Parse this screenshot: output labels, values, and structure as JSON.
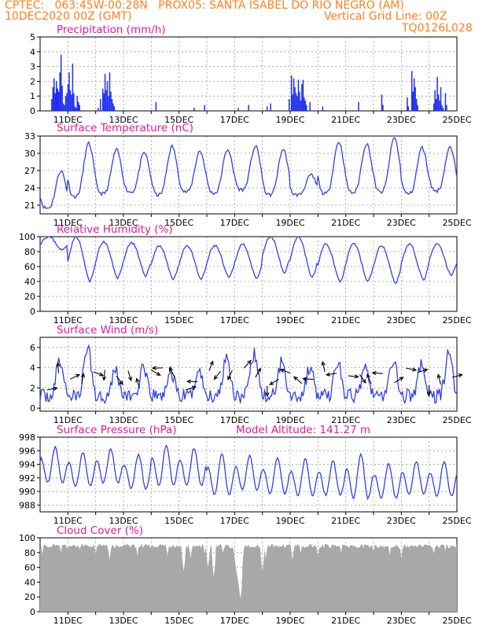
{
  "header": {
    "line1_left": "CPTEC:   063:45W-00:28N   PROX05: SANTA ISABEL DO RIO NEGRO (AM)",
    "line2_left": "10DEC2020 00Z (GMT)",
    "line2_right": "Vertical Grid Line: 00Z",
    "line3_right": "TQ0126L028"
  },
  "colors": {
    "header": "#ff7f1f",
    "title": "#e8179a",
    "series": "#3340e8",
    "bars": "#1f2ff0",
    "cloud": "#a8a8a8",
    "grid": "#9a9a9a"
  },
  "chart_data": [
    {
      "type": "bar",
      "title": "Precipitation (mm/h)",
      "x_tick_labels": [
        "11DEC",
        "13DEC",
        "15DEC",
        "17DEC",
        "19DEC",
        "21DEC",
        "23DEC",
        "25DEC"
      ],
      "ylim": [
        0,
        5
      ],
      "y_ticks": [
        0,
        1,
        2,
        3,
        4,
        5
      ],
      "x_unit": "hours since 10DEC2020 00Z",
      "values_hourly_sparse": [
        [
          10,
          0.8
        ],
        [
          11,
          1.6
        ],
        [
          12,
          2.2
        ],
        [
          13,
          1.2
        ],
        [
          14,
          2.0
        ],
        [
          15,
          1.5
        ],
        [
          16,
          1.3
        ],
        [
          17,
          2.6
        ],
        [
          18,
          3.8
        ],
        [
          19,
          1.7
        ],
        [
          20,
          0.5
        ],
        [
          21,
          0.4
        ],
        [
          22,
          1.0
        ],
        [
          23,
          1.2
        ],
        [
          24,
          1.8
        ],
        [
          25,
          2.6
        ],
        [
          26,
          1.4
        ],
        [
          27,
          1.1
        ],
        [
          28,
          3.2
        ],
        [
          29,
          1.2
        ],
        [
          30,
          0.3
        ],
        [
          31,
          0.2
        ],
        [
          32,
          1.0
        ],
        [
          33,
          0.6
        ],
        [
          34,
          0.4
        ],
        [
          50,
          0.2
        ],
        [
          52,
          0.8
        ],
        [
          54,
          1.5
        ],
        [
          55,
          1.2
        ],
        [
          56,
          2.5
        ],
        [
          57,
          1.4
        ],
        [
          58,
          2.0
        ],
        [
          59,
          1.0
        ],
        [
          60,
          2.6
        ],
        [
          61,
          1.3
        ],
        [
          62,
          0.8
        ],
        [
          63,
          0.5
        ],
        [
          64,
          0.3
        ],
        [
          100,
          0.6
        ],
        [
          133,
          0.2
        ],
        [
          142,
          0.4
        ],
        [
          171,
          0.2
        ],
        [
          180,
          0.4
        ],
        [
          196,
          0.3
        ],
        [
          199,
          0.5
        ],
        [
          215,
          0.8
        ],
        [
          217,
          2.4
        ],
        [
          218,
          1.1
        ],
        [
          219,
          2.2
        ],
        [
          220,
          1.6
        ],
        [
          221,
          1.2
        ],
        [
          222,
          1.0
        ],
        [
          223,
          2.1
        ],
        [
          224,
          1.3
        ],
        [
          225,
          0.7
        ],
        [
          226,
          1.8
        ],
        [
          227,
          2.1
        ],
        [
          228,
          0.9
        ],
        [
          229,
          0.7
        ],
        [
          230,
          0.4
        ],
        [
          233,
          0.6
        ],
        [
          244,
          0.3
        ],
        [
          275,
          0.6
        ],
        [
          295,
          1.1
        ],
        [
          296,
          0.4
        ],
        [
          317,
          0.9
        ],
        [
          318,
          0.3
        ],
        [
          321,
          2.7
        ],
        [
          322,
          1.3
        ],
        [
          323,
          2.2
        ],
        [
          324,
          1.6
        ],
        [
          325,
          0.8
        ],
        [
          326,
          0.4
        ],
        [
          340,
          0.5
        ],
        [
          341,
          1.4
        ],
        [
          342,
          0.8
        ],
        [
          343,
          2.3
        ],
        [
          344,
          1.1
        ],
        [
          345,
          0.7
        ],
        [
          346,
          1.6
        ],
        [
          347,
          0.4
        ],
        [
          348,
          0.2
        ],
        [
          350,
          1.2
        ],
        [
          351,
          0.4
        ]
      ]
    },
    {
      "type": "line",
      "title": "Surface Temperature (nC)",
      "x_tick_labels": [
        "11DEC",
        "13DEC",
        "15DEC",
        "17DEC",
        "19DEC",
        "21DEC",
        "23DEC",
        "25DEC"
      ],
      "ylim": [
        19.5,
        33
      ],
      "y_ticks": [
        21,
        24,
        27,
        30,
        33
      ],
      "daily_min": [
        20.5,
        22.5,
        23.0,
        23.3,
        22.8,
        23.3,
        23.1,
        23.7,
        22.8,
        22.8,
        23.0,
        23.2,
        23.3,
        23.0,
        23.5
      ],
      "daily_max": [
        27.0,
        31.7,
        30.6,
        30.1,
        31.2,
        30.4,
        30.7,
        31.2,
        30.7,
        26.2,
        32.0,
        31.7,
        32.7,
        31.0,
        31.0
      ]
    },
    {
      "type": "line",
      "title": "Relative Humidity (%)",
      "x_tick_labels": [
        "11DEC",
        "13DEC",
        "15DEC",
        "17DEC",
        "19DEC",
        "21DEC",
        "23DEC",
        "25DEC"
      ],
      "ylim": [
        0,
        100
      ],
      "y_ticks": [
        0,
        20,
        40,
        60,
        80,
        100
      ],
      "daily_min": [
        82,
        40,
        45,
        48,
        43,
        43,
        45,
        43,
        52,
        45,
        40,
        40,
        38,
        42,
        48
      ],
      "daily_max": [
        100,
        100,
        93,
        92,
        88,
        88,
        88,
        90,
        100,
        100,
        90,
        90,
        88,
        90,
        90
      ]
    },
    {
      "type": "line",
      "title": "Surface Wind (m/s)",
      "x_tick_labels": [
        "11DEC",
        "13DEC",
        "15DEC",
        "17DEC",
        "19DEC",
        "21DEC",
        "23DEC",
        "25DEC"
      ],
      "ylim": [
        -0.3,
        7
      ],
      "y_ticks": [
        0,
        2,
        4,
        6
      ],
      "daily_peak_speed": [
        4.7,
        6.1,
        3.8,
        3.8,
        3.5,
        3.7,
        5.2,
        5.3,
        4.8,
        4.0,
        4.5,
        4.5,
        4.8,
        4.2,
        5.5
      ]
    },
    {
      "type": "line",
      "title": "Surface Pressure (hPa)",
      "annotation": "Model Altitude: 141.27 m",
      "x_tick_labels": [
        "11DEC",
        "13DEC",
        "15DEC",
        "17DEC",
        "19DEC",
        "21DEC",
        "23DEC",
        "25DEC"
      ],
      "ylim": [
        987,
        998
      ],
      "y_ticks": [
        988,
        990,
        992,
        994,
        996,
        998
      ],
      "daily_max": [
        996.5,
        995.8,
        996.2,
        995.5,
        996.8,
        996.4,
        995.5,
        995.2,
        995.0,
        994.8,
        994.5,
        995.5,
        994.0,
        994.5,
        994.4
      ],
      "daily_min": [
        990.5,
        990.0,
        990.5,
        989.6,
        990.0,
        990.0,
        988.5,
        989.5,
        988.8,
        988.5,
        988.7,
        988.0,
        988.3,
        988.8,
        988.5
      ]
    },
    {
      "type": "area",
      "title": "Cloud Cover (%)",
      "x_tick_labels": [
        "11DEC",
        "13DEC",
        "15DEC",
        "17DEC",
        "19DEC",
        "21DEC",
        "23DEC",
        "25DEC"
      ],
      "ylim": [
        0,
        100
      ],
      "y_ticks": [
        0,
        20,
        40,
        60,
        80,
        100
      ],
      "baseline_percent": 89,
      "dips_hour_percent": [
        [
          2,
          78
        ],
        [
          18,
          80
        ],
        [
          34,
          85
        ],
        [
          48,
          76
        ],
        [
          60,
          70
        ],
        [
          84,
          75
        ],
        [
          110,
          75
        ],
        [
          124,
          55
        ],
        [
          125,
          95
        ],
        [
          130,
          72
        ],
        [
          142,
          78
        ],
        [
          145,
          60
        ],
        [
          150,
          48
        ],
        [
          151,
          90
        ],
        [
          158,
          80
        ],
        [
          168,
          72
        ],
        [
          170,
          50
        ],
        [
          172,
          30
        ],
        [
          173,
          18
        ],
        [
          174,
          55
        ],
        [
          176,
          85
        ],
        [
          192,
          55
        ],
        [
          195,
          72
        ],
        [
          218,
          70
        ],
        [
          225,
          78
        ],
        [
          240,
          74
        ],
        [
          260,
          80
        ],
        [
          288,
          82
        ],
        [
          302,
          76
        ],
        [
          312,
          72
        ],
        [
          340,
          78
        ],
        [
          350,
          82
        ]
      ]
    }
  ]
}
